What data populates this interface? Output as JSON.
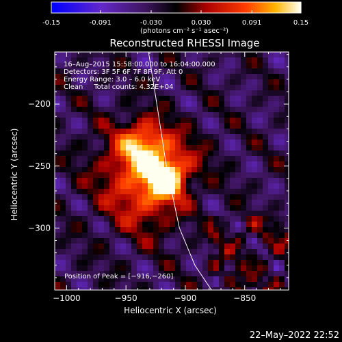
{
  "colorbar": {
    "tick_labels": [
      "-0.15",
      "-0.091",
      "-0.030",
      "0.030",
      "0.091",
      "0.15"
    ],
    "tick_values": [
      -0.15,
      -0.091,
      -0.03,
      0.03,
      0.091,
      0.15
    ],
    "range": [
      -0.15,
      0.15
    ],
    "units_text": "(photons cm⁻² s⁻¹ asec⁻²)",
    "colormap": "blue-purple-black-red-orange-yellow-white"
  },
  "chart_data": {
    "type": "heatmap",
    "title": "Reconstructed RHESSI Image",
    "xlabel": "Heliocentric X (arcsec)",
    "ylabel": "Heliocentric Y (arcsec)",
    "xlim": [
      -1010,
      -813
    ],
    "ylim": [
      -350,
      -158
    ],
    "xticks": [
      -1000,
      -950,
      -900,
      -850
    ],
    "xtick_labels": [
      "−1000",
      "−950",
      "−900",
      "−850"
    ],
    "yticks": [
      -200,
      -250,
      -300
    ],
    "ytick_labels": [
      "−200",
      "−250",
      "−300"
    ],
    "info_lines": [
      "16–Aug–2015 15:58:00.000 to 16:04:00.000",
      "Detectors: 3F 5F 6F 7F 8F 9F, Att 0",
      "Energy Range: 3.0 – 6.0 keV",
      "Clean     Total counts: 4.32E+04"
    ],
    "peak_label": "Position of Peak = [−916,−260]",
    "peak": [
      -916,
      -260
    ],
    "sources": [
      {
        "x": -916,
        "y": -260,
        "amp": 0.15,
        "sigma": 10
      },
      {
        "x": -935,
        "y": -233,
        "amp": 0.11,
        "sigma": 14
      },
      {
        "x": -945,
        "y": -255,
        "amp": 0.08,
        "sigma": 24
      },
      {
        "x": -930,
        "y": -280,
        "amp": 0.06,
        "sigma": 20
      },
      {
        "x": -905,
        "y": -245,
        "amp": 0.05,
        "sigma": 18
      }
    ],
    "limb_curve": [
      [
        -931,
        -158
      ],
      [
        -924,
        -200
      ],
      [
        -916,
        -250
      ],
      [
        -905,
        -300
      ],
      [
        -892,
        -330
      ],
      [
        -878,
        -350
      ]
    ]
  },
  "timestamp": "22–May–2022 22:52"
}
